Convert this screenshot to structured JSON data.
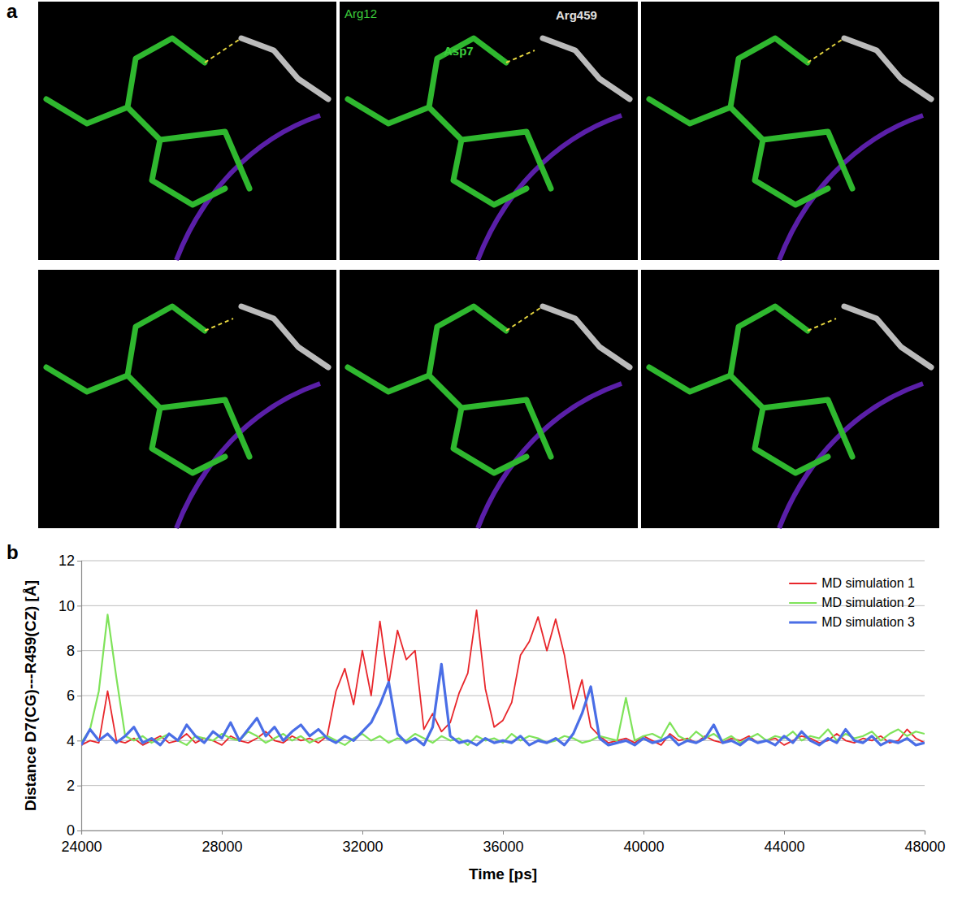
{
  "panel_a": {
    "letter": "a",
    "labels": [
      {
        "text": "Arg12",
        "color": "#3ccf3c"
      },
      {
        "text": "Asp7",
        "color": "#3ccf3c"
      },
      {
        "text": "Arg459",
        "color": "#e0e0e0"
      }
    ]
  },
  "panel_b": {
    "letter": "b"
  },
  "chart_data": {
    "type": "line",
    "x_label": "Time [ps]",
    "y_label": "Distance D7(CG)---R459(CZ) [Å]",
    "x": [
      24000,
      24250,
      24500,
      24750,
      25000,
      25250,
      25500,
      25750,
      26000,
      26250,
      26500,
      26750,
      27000,
      27250,
      27500,
      27750,
      28000,
      28250,
      28500,
      28750,
      29000,
      29250,
      29500,
      29750,
      30000,
      30250,
      30500,
      30750,
      31000,
      31250,
      31500,
      31750,
      32000,
      32250,
      32500,
      32750,
      33000,
      33250,
      33500,
      33750,
      34000,
      34250,
      34500,
      34750,
      35000,
      35250,
      35500,
      35750,
      36000,
      36250,
      36500,
      36750,
      37000,
      37250,
      37500,
      37750,
      38000,
      38250,
      38500,
      38750,
      39000,
      39250,
      39500,
      39750,
      40000,
      40250,
      40500,
      40750,
      41000,
      41250,
      41500,
      41750,
      42000,
      42250,
      42500,
      42750,
      43000,
      43250,
      43500,
      43750,
      44000,
      44250,
      44500,
      44750,
      45000,
      45250,
      45500,
      45750,
      46000,
      46250,
      46500,
      46750,
      47000,
      47250,
      47500,
      47750,
      48000
    ],
    "series": [
      {
        "name": "MD simulation 1",
        "color": "#e8262b",
        "values": [
          3.8,
          4.0,
          3.9,
          6.2,
          4.0,
          3.9,
          4.1,
          3.8,
          4.0,
          4.2,
          3.9,
          4.0,
          4.3,
          3.9,
          4.1,
          4.0,
          3.8,
          4.2,
          4.0,
          3.9,
          4.1,
          4.4,
          4.0,
          3.9,
          4.2,
          4.0,
          4.1,
          3.9,
          4.2,
          6.2,
          7.2,
          5.6,
          8.0,
          6.0,
          9.3,
          6.5,
          8.9,
          7.6,
          8.0,
          4.5,
          5.2,
          4.4,
          4.8,
          6.1,
          7.0,
          9.8,
          6.3,
          4.6,
          4.9,
          5.7,
          7.8,
          8.4,
          9.5,
          8.0,
          9.4,
          7.8,
          5.4,
          6.7,
          4.6,
          4.2,
          3.9,
          4.0,
          4.1,
          3.9,
          4.2,
          4.0,
          3.8,
          4.3,
          4.0,
          4.1,
          3.9,
          4.2,
          4.0,
          3.9,
          4.1,
          4.0,
          4.2,
          3.9,
          4.0,
          4.1,
          3.8,
          4.0,
          4.2,
          4.1,
          3.9,
          4.0,
          4.3,
          4.0,
          3.9,
          4.1,
          4.0,
          4.2,
          3.9,
          4.0,
          4.5,
          4.1,
          3.9
        ]
      },
      {
        "name": "MD simulation 2",
        "color": "#7fe35a",
        "values": [
          3.9,
          4.5,
          6.2,
          9.6,
          6.8,
          4.2,
          4.0,
          4.2,
          3.9,
          4.1,
          4.3,
          4.0,
          3.8,
          4.2,
          4.1,
          4.0,
          4.3,
          4.1,
          4.0,
          4.4,
          4.2,
          3.9,
          4.1,
          4.3,
          4.0,
          4.2,
          3.9,
          4.1,
          4.2,
          4.0,
          3.8,
          4.1,
          4.3,
          4.0,
          4.2,
          3.9,
          4.1,
          4.0,
          4.3,
          4.1,
          3.9,
          4.2,
          4.0,
          4.1,
          3.8,
          4.2,
          4.0,
          4.1,
          3.9,
          4.3,
          4.0,
          4.2,
          4.1,
          3.9,
          4.0,
          4.2,
          4.1,
          3.9,
          4.0,
          4.2,
          4.1,
          4.0,
          5.9,
          4.0,
          4.2,
          4.3,
          4.1,
          4.8,
          4.2,
          4.0,
          4.4,
          4.1,
          4.3,
          4.0,
          4.2,
          3.9,
          4.1,
          4.3,
          4.0,
          4.2,
          4.1,
          4.4,
          4.0,
          4.2,
          4.1,
          4.5,
          4.0,
          4.3,
          4.1,
          4.2,
          4.4,
          4.0,
          4.3,
          4.5,
          4.2,
          4.4,
          4.3
        ]
      },
      {
        "name": "MD simulation 3",
        "color": "#4a6ee6",
        "values": [
          3.8,
          4.5,
          4.0,
          4.3,
          3.9,
          4.2,
          4.6,
          3.9,
          4.1,
          3.8,
          4.3,
          4.0,
          4.7,
          4.2,
          3.9,
          4.4,
          4.1,
          4.8,
          4.0,
          4.5,
          5.0,
          4.2,
          4.6,
          4.0,
          4.4,
          4.7,
          4.2,
          4.5,
          4.1,
          3.9,
          4.2,
          4.0,
          4.4,
          4.8,
          5.6,
          6.6,
          4.3,
          3.9,
          4.1,
          3.8,
          4.6,
          7.4,
          4.2,
          3.9,
          4.0,
          3.8,
          4.1,
          3.9,
          4.0,
          3.9,
          4.2,
          3.8,
          4.0,
          3.9,
          4.1,
          3.8,
          4.3,
          5.2,
          6.4,
          4.1,
          3.8,
          3.9,
          4.0,
          3.8,
          4.1,
          3.9,
          4.0,
          4.2,
          3.8,
          4.0,
          3.9,
          4.1,
          4.7,
          3.9,
          4.0,
          3.8,
          4.1,
          3.9,
          4.0,
          3.8,
          4.2,
          3.9,
          4.4,
          4.0,
          3.8,
          4.1,
          3.9,
          4.5,
          4.0,
          3.9,
          4.2,
          3.8,
          4.0,
          3.9,
          4.1,
          3.8,
          3.9
        ]
      }
    ],
    "xlim": [
      24000,
      48000
    ],
    "xticks": [
      24000,
      28000,
      32000,
      36000,
      40000,
      44000,
      48000
    ],
    "ylim": [
      0,
      12
    ],
    "yticks": [
      0,
      2,
      4,
      6,
      8,
      10,
      12
    ],
    "grid": true,
    "legend": "upper right"
  }
}
